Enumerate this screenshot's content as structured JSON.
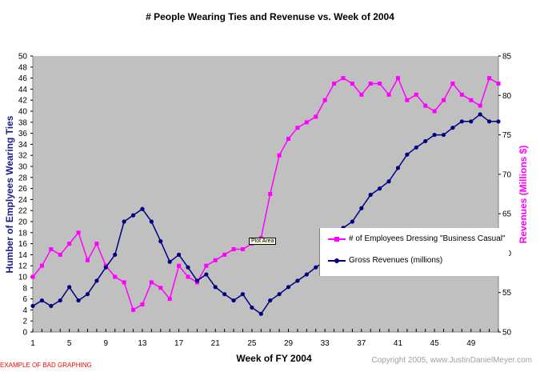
{
  "chart_data": {
    "type": "line",
    "title": "# People Wearing Ties and Revenuse vs. Week of 2004",
    "xlabel": "Week of FY 2004",
    "ylabel": "Humber of Emplyees Wearing Ties",
    "ylabel_right": "Revenues (Millions $)",
    "x": [
      1,
      2,
      3,
      4,
      5,
      6,
      7,
      8,
      9,
      10,
      11,
      12,
      13,
      14,
      15,
      16,
      17,
      18,
      19,
      20,
      21,
      22,
      23,
      24,
      25,
      26,
      27,
      28,
      29,
      30,
      31,
      32,
      33,
      34,
      35,
      36,
      37,
      38,
      39,
      40,
      41,
      42,
      43,
      44,
      45,
      46,
      47,
      48,
      49,
      50,
      51,
      52
    ],
    "x_tick_labels": [
      "1",
      "5",
      "9",
      "13",
      "17",
      "21",
      "25",
      "29",
      "33",
      "37",
      "41",
      "45",
      "49"
    ],
    "x_tick_values": [
      1,
      5,
      9,
      13,
      17,
      21,
      25,
      29,
      33,
      37,
      41,
      45,
      49
    ],
    "xlim": [
      1,
      52
    ],
    "ylim": [
      0,
      50
    ],
    "y_ticks": [
      0,
      2,
      4,
      6,
      8,
      10,
      12,
      14,
      16,
      18,
      20,
      22,
      24,
      26,
      28,
      30,
      32,
      34,
      36,
      38,
      40,
      42,
      44,
      46,
      48,
      50
    ],
    "ylim_right": [
      50,
      85
    ],
    "y_ticks_right": [
      50,
      55,
      60,
      65,
      70,
      75,
      80,
      85
    ],
    "grid": false,
    "plot_background": "#c0c0c0",
    "legend_position": "center-right",
    "series": [
      {
        "name": "# of Employees Dressing \"Business Casual\"",
        "axis": "left",
        "color": "#ff00ff",
        "marker": "square",
        "values": [
          10,
          12,
          15,
          14,
          16,
          18,
          13,
          16,
          12,
          10,
          9,
          4,
          5,
          9,
          8,
          6,
          12,
          10,
          9,
          12,
          13,
          14,
          15,
          15,
          16,
          17,
          25,
          32,
          35,
          37,
          38,
          39,
          42,
          45,
          46,
          45,
          43,
          45,
          45,
          43,
          46,
          42,
          43,
          41,
          40,
          42,
          45,
          43,
          42,
          41,
          46,
          45
        ]
      },
      {
        "name": "Gross Revenues (millions)",
        "axis": "right",
        "color": "#000080",
        "marker": "circle",
        "values": [
          53.3,
          54.0,
          53.3,
          54.0,
          55.7,
          54.0,
          54.8,
          56.5,
          58.2,
          59.8,
          64.0,
          64.8,
          65.6,
          64.0,
          61.5,
          58.9,
          59.8,
          58.2,
          56.5,
          57.3,
          55.7,
          54.8,
          54.0,
          54.8,
          53.1,
          52.3,
          54.0,
          54.8,
          55.7,
          56.5,
          57.3,
          58.2,
          59.0,
          60.5,
          63.2,
          64.0,
          65.7,
          67.4,
          68.2,
          69.1,
          70.8,
          72.5,
          73.4,
          74.2,
          75.0,
          75.0,
          75.9,
          76.7,
          76.7,
          77.6,
          76.7,
          76.7
        ]
      }
    ],
    "annotations": [
      "Plot Area"
    ]
  },
  "footer": {
    "left_note": "EXAMPLE OF BAD GRAPHING",
    "copyright": "Copyright 2005, www.JustinDanielMeyer.com"
  },
  "tooltip": "Plot Area"
}
